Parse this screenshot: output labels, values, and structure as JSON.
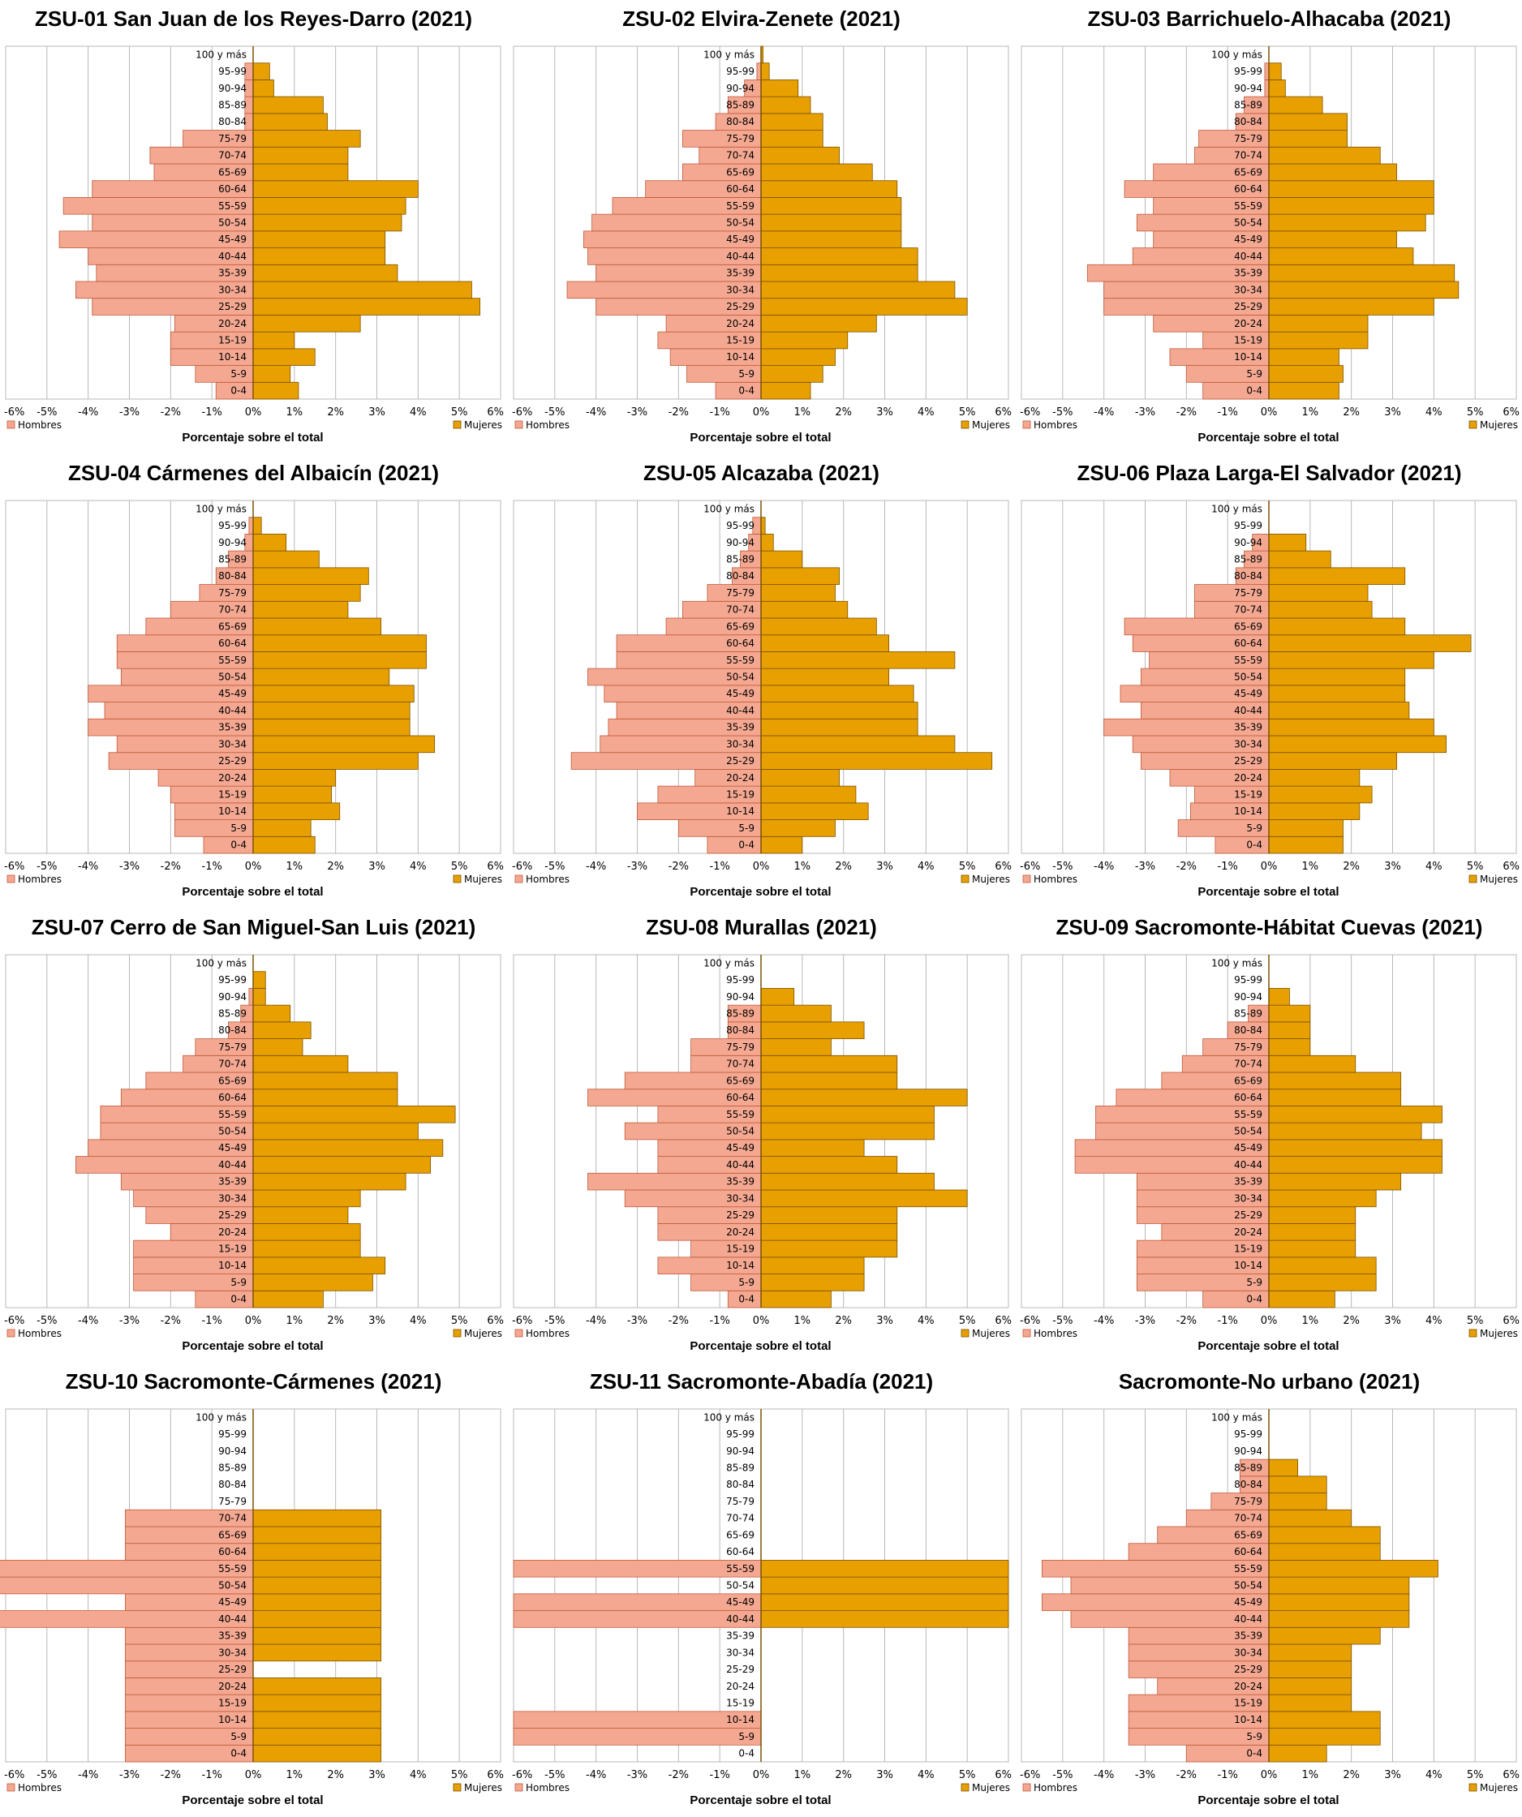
{
  "colors": {
    "hombres": "#f4a891",
    "hombres_edge": "#c05a3a",
    "mujeres": "#e8a000",
    "mujeres_edge": "#7a5200",
    "grid": "#b8b8b8",
    "axis": "#7a5200"
  },
  "age_groups": [
    "0-4",
    "5-9",
    "10-14",
    "15-19",
    "20-24",
    "25-29",
    "30-34",
    "35-39",
    "40-44",
    "45-49",
    "50-54",
    "55-59",
    "60-64",
    "65-69",
    "70-74",
    "75-79",
    "80-84",
    "85-89",
    "90-94",
    "95-99",
    "100 y más"
  ],
  "x_ticks": [
    "-6%",
    "-5%",
    "-4%",
    "-3%",
    "-2%",
    "-1%",
    "0%",
    "1%",
    "2%",
    "3%",
    "4%",
    "5%",
    "6%"
  ],
  "chart_data": [
    {
      "type": "bar",
      "orientation": "horizontal",
      "title": "ZSU-01 San Juan de los Reyes-Darro (2021)",
      "xlabel": "Porcentaje sobre el total",
      "xlim": [
        -6,
        6
      ],
      "legend": "bottom",
      "series": [
        {
          "name": "Hombres",
          "values": [
            0.9,
            1.4,
            2.0,
            2.0,
            1.9,
            3.9,
            4.3,
            3.8,
            4.0,
            4.7,
            3.9,
            4.6,
            3.9,
            2.4,
            2.5,
            1.7,
            0.2,
            0.2,
            0.2,
            0.2,
            0
          ]
        },
        {
          "name": "Mujeres",
          "values": [
            1.1,
            0.9,
            1.5,
            1.0,
            2.6,
            5.5,
            5.3,
            3.5,
            3.2,
            3.2,
            3.6,
            3.7,
            4.0,
            2.3,
            2.3,
            2.6,
            1.8,
            1.7,
            0.5,
            0.4,
            0
          ]
        }
      ]
    },
    {
      "type": "bar",
      "orientation": "horizontal",
      "title": "ZSU-02 Elvira-Zenete (2021)",
      "xlabel": "Porcentaje sobre el total",
      "xlim": [
        -6,
        6
      ],
      "legend": "bottom",
      "series": [
        {
          "name": "Hombres",
          "values": [
            1.1,
            1.8,
            2.2,
            2.5,
            2.3,
            4.0,
            4.7,
            4.0,
            4.2,
            4.3,
            4.1,
            3.6,
            2.8,
            1.9,
            1.5,
            1.9,
            1.1,
            0.8,
            0.4,
            0.1,
            0
          ]
        },
        {
          "name": "Mujeres",
          "values": [
            1.2,
            1.5,
            1.8,
            2.1,
            2.8,
            5.0,
            4.7,
            3.8,
            3.8,
            3.4,
            3.4,
            3.4,
            3.3,
            2.7,
            1.9,
            1.5,
            1.5,
            1.2,
            0.9,
            0.2,
            0.05
          ]
        }
      ]
    },
    {
      "type": "bar",
      "orientation": "horizontal",
      "title": "ZSU-03 Barrichuelo-Alhacaba (2021)",
      "xlabel": "Porcentaje sobre el total",
      "xlim": [
        -6,
        6
      ],
      "legend": "bottom",
      "series": [
        {
          "name": "Hombres",
          "values": [
            1.6,
            2.0,
            2.4,
            1.6,
            2.8,
            4.0,
            4.0,
            4.4,
            3.3,
            2.8,
            3.2,
            2.8,
            3.5,
            2.8,
            1.8,
            1.7,
            0.8,
            0.6,
            0.1,
            0.1,
            0
          ]
        },
        {
          "name": "Mujeres",
          "values": [
            1.7,
            1.8,
            1.7,
            2.4,
            2.4,
            4.0,
            4.6,
            4.5,
            3.5,
            3.1,
            3.8,
            4.0,
            4.0,
            3.1,
            2.7,
            1.9,
            1.9,
            1.3,
            0.4,
            0.3,
            0
          ]
        }
      ]
    },
    {
      "type": "bar",
      "orientation": "horizontal",
      "title": "ZSU-04 Cármenes del Albaicín (2021)",
      "xlabel": "Porcentaje sobre el total",
      "xlim": [
        -6,
        6
      ],
      "legend": "bottom",
      "series": [
        {
          "name": "Hombres",
          "values": [
            1.2,
            1.9,
            1.9,
            2.0,
            2.3,
            3.5,
            3.3,
            4.0,
            3.6,
            4.0,
            3.2,
            3.3,
            3.3,
            2.6,
            2.0,
            1.3,
            0.9,
            0.6,
            0.2,
            0.1,
            0
          ]
        },
        {
          "name": "Mujeres",
          "values": [
            1.5,
            1.4,
            2.1,
            1.9,
            2.0,
            4.0,
            4.4,
            3.8,
            3.8,
            3.9,
            3.3,
            4.2,
            4.2,
            3.1,
            2.3,
            2.6,
            2.8,
            1.6,
            0.8,
            0.2,
            0
          ]
        }
      ]
    },
    {
      "type": "bar",
      "orientation": "horizontal",
      "title": "ZSU-05 Alcazaba (2021)",
      "xlabel": "Porcentaje sobre el total",
      "xlim": [
        -6,
        6
      ],
      "legend": "bottom",
      "series": [
        {
          "name": "Hombres",
          "values": [
            1.3,
            2.0,
            3.0,
            2.5,
            1.6,
            4.6,
            3.9,
            3.7,
            3.5,
            3.8,
            4.2,
            3.5,
            3.5,
            2.3,
            1.9,
            1.3,
            0.7,
            0.5,
            0.3,
            0.2,
            0
          ]
        },
        {
          "name": "Mujeres",
          "values": [
            1.0,
            1.8,
            2.6,
            2.3,
            1.9,
            5.6,
            4.7,
            3.8,
            3.8,
            3.7,
            3.1,
            4.7,
            3.1,
            2.8,
            2.1,
            1.8,
            1.9,
            1.0,
            0.3,
            0.1,
            0
          ]
        }
      ]
    },
    {
      "type": "bar",
      "orientation": "horizontal",
      "title": "ZSU-06 Plaza Larga-El Salvador (2021)",
      "xlabel": "Porcentaje sobre el total",
      "xlim": [
        -6,
        6
      ],
      "legend": "bottom",
      "series": [
        {
          "name": "Hombres",
          "values": [
            1.3,
            2.2,
            1.9,
            1.8,
            2.4,
            3.1,
            3.3,
            4.0,
            3.1,
            3.6,
            3.1,
            2.9,
            3.3,
            3.5,
            1.8,
            1.8,
            0.8,
            0.6,
            0.4,
            0,
            0
          ]
        },
        {
          "name": "Mujeres",
          "values": [
            1.8,
            1.8,
            2.2,
            2.5,
            2.2,
            3.1,
            4.3,
            4.0,
            3.4,
            3.3,
            3.3,
            4.0,
            4.9,
            3.3,
            2.5,
            2.4,
            3.3,
            1.5,
            0.9,
            0,
            0
          ]
        }
      ]
    },
    {
      "type": "bar",
      "orientation": "horizontal",
      "title": "ZSU-07 Cerro de San Miguel-San Luis (2021)",
      "xlabel": "Porcentaje sobre el total",
      "xlim": [
        -6,
        6
      ],
      "legend": "bottom",
      "series": [
        {
          "name": "Hombres",
          "values": [
            1.4,
            2.9,
            2.9,
            2.9,
            2.0,
            2.6,
            2.9,
            3.2,
            4.3,
            4.0,
            3.7,
            3.7,
            3.2,
            2.6,
            1.7,
            1.4,
            0.6,
            0.3,
            0.1,
            0,
            0
          ]
        },
        {
          "name": "Mujeres",
          "values": [
            1.7,
            2.9,
            3.2,
            2.6,
            2.6,
            2.3,
            2.6,
            3.7,
            4.3,
            4.6,
            4.0,
            4.9,
            3.5,
            3.5,
            2.3,
            1.2,
            1.4,
            0.9,
            0.3,
            0.3,
            0
          ]
        }
      ]
    },
    {
      "type": "bar",
      "orientation": "horizontal",
      "title": "ZSU-08 Murallas (2021)",
      "xlabel": "Porcentaje sobre el total",
      "xlim": [
        -6,
        6
      ],
      "legend": "bottom",
      "series": [
        {
          "name": "Hombres",
          "values": [
            0.8,
            1.7,
            2.5,
            1.7,
            2.5,
            2.5,
            3.3,
            4.2,
            2.5,
            2.5,
            3.3,
            2.5,
            4.2,
            3.3,
            1.7,
            1.7,
            0.8,
            0.8,
            0,
            0,
            0
          ]
        },
        {
          "name": "Mujeres",
          "values": [
            1.7,
            2.5,
            2.5,
            3.3,
            3.3,
            3.3,
            5.0,
            4.2,
            3.3,
            2.5,
            4.2,
            4.2,
            5.0,
            3.3,
            3.3,
            1.7,
            2.5,
            1.7,
            0.8,
            0,
            0
          ]
        }
      ]
    },
    {
      "type": "bar",
      "orientation": "horizontal",
      "title": "ZSU-09 Sacromonte-Hábitat Cuevas (2021)",
      "xlabel": "Porcentaje sobre el total",
      "xlim": [
        -6,
        6
      ],
      "legend": "bottom",
      "series": [
        {
          "name": "Hombres",
          "values": [
            1.6,
            3.2,
            3.2,
            3.2,
            2.6,
            3.2,
            3.2,
            3.2,
            4.7,
            4.7,
            4.2,
            4.2,
            3.7,
            2.6,
            2.1,
            1.6,
            1.0,
            0.5,
            0,
            0,
            0
          ]
        },
        {
          "name": "Mujeres",
          "values": [
            1.6,
            2.6,
            2.6,
            2.1,
            2.1,
            2.1,
            2.6,
            3.2,
            4.2,
            4.2,
            3.7,
            4.2,
            3.2,
            3.2,
            2.1,
            1.0,
            1.0,
            1.0,
            0.5,
            0,
            0
          ]
        }
      ]
    },
    {
      "type": "bar",
      "orientation": "horizontal",
      "title": "ZSU-10 Sacromonte-Cármenes (2021)",
      "xlabel": "Porcentaje sobre el total",
      "xlim": [
        -6,
        6
      ],
      "legend": "bottom",
      "series": [
        {
          "name": "Hombres",
          "values": [
            3.1,
            3.1,
            3.1,
            3.1,
            3.1,
            3.1,
            3.1,
            3.1,
            6.2,
            3.1,
            6.2,
            6.2,
            3.1,
            3.1,
            3.1,
            0,
            0,
            0,
            0,
            0,
            0
          ]
        },
        {
          "name": "Mujeres",
          "values": [
            3.1,
            3.1,
            3.1,
            3.1,
            3.1,
            0,
            3.1,
            3.1,
            3.1,
            3.1,
            3.1,
            3.1,
            3.1,
            3.1,
            3.1,
            0,
            0,
            0,
            0,
            0,
            0
          ]
        }
      ]
    },
    {
      "type": "bar",
      "orientation": "horizontal",
      "title": "ZSU-11 Sacromonte-Abadía (2021)",
      "xlabel": "Porcentaje sobre el total",
      "xlim": [
        -6,
        6
      ],
      "legend": "bottom",
      "series": [
        {
          "name": "Hombres",
          "values": [
            0,
            6,
            6,
            0,
            0,
            0,
            0,
            0,
            6,
            6,
            0,
            6,
            0,
            0,
            0,
            0,
            0,
            0,
            0,
            0,
            0
          ]
        },
        {
          "name": "Mujeres",
          "values": [
            0,
            0,
            0,
            0,
            0,
            0,
            0,
            0,
            6,
            6,
            6,
            6,
            0,
            0,
            0,
            0,
            0,
            0,
            0,
            0,
            0
          ]
        }
      ]
    },
    {
      "type": "bar",
      "orientation": "horizontal",
      "title": "Sacromonte-No urbano (2021)",
      "xlabel": "Porcentaje sobre el total",
      "xlim": [
        -6,
        6
      ],
      "legend": "bottom",
      "series": [
        {
          "name": "Hombres",
          "values": [
            2.0,
            3.4,
            3.4,
            3.4,
            2.7,
            3.4,
            3.4,
            3.4,
            4.8,
            5.5,
            4.8,
            5.5,
            3.4,
            2.7,
            2.0,
            1.4,
            0.7,
            0.7,
            0,
            0,
            0
          ]
        },
        {
          "name": "Mujeres",
          "values": [
            1.4,
            2.7,
            2.7,
            2.0,
            2.0,
            2.0,
            2.0,
            2.7,
            3.4,
            3.4,
            3.4,
            4.1,
            2.7,
            2.7,
            2.0,
            1.4,
            1.4,
            0.7,
            0,
            0,
            0
          ]
        }
      ]
    }
  ]
}
